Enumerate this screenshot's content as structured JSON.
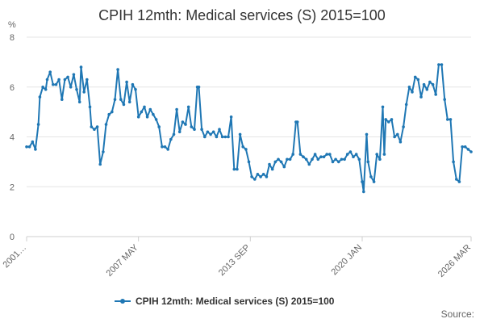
{
  "chart_data": {
    "type": "line",
    "title": "CPIH 12mth: Medical services (S) 2015=100",
    "ylabel": "%",
    "ylim": [
      0,
      8
    ],
    "yticks": [
      0,
      2,
      4,
      6,
      8
    ],
    "x_range": [
      "2001 JAN",
      "2026 MAR"
    ],
    "xticks": [
      "2001…",
      "2007 MAY",
      "2013 SEP",
      "2020 JAN",
      "2026 MAR"
    ],
    "grid": true,
    "legend": "bottom",
    "source_label": "Source:",
    "series": [
      {
        "name": "CPIH 12mth: Medical services (S) 2015=100",
        "color": "#1f77b4",
        "marker": "circle",
        "points": [
          [
            "2001 JAN",
            3.6
          ],
          [
            "2001 MAR",
            3.6
          ],
          [
            "2001 MAY",
            3.8
          ],
          [
            "2001 JUL",
            3.5
          ],
          [
            "2001 SEP",
            4.5
          ],
          [
            "2001 OCT",
            5.6
          ],
          [
            "2001 DEC",
            6.0
          ],
          [
            "2002 FEB",
            5.9
          ],
          [
            "2002 MAR",
            6.3
          ],
          [
            "2002 MAY",
            6.6
          ],
          [
            "2002 JUL",
            6.1
          ],
          [
            "2002 SEP",
            6.1
          ],
          [
            "2002 NOV",
            6.3
          ],
          [
            "2003 JAN",
            5.5
          ],
          [
            "2003 MAR",
            6.3
          ],
          [
            "2003 MAY",
            6.4
          ],
          [
            "2003 JUL",
            6.0
          ],
          [
            "2003 SEP",
            6.5
          ],
          [
            "2003 NOV",
            5.9
          ],
          [
            "2004 JAN",
            5.4
          ],
          [
            "2004 FEB",
            6.8
          ],
          [
            "2004 APR",
            5.8
          ],
          [
            "2004 JUN",
            6.3
          ],
          [
            "2004 AUG",
            5.2
          ],
          [
            "2004 SEP",
            4.4
          ],
          [
            "2004 NOV",
            4.3
          ],
          [
            "2005 JAN",
            4.4
          ],
          [
            "2005 MAR",
            2.9
          ],
          [
            "2005 MAY",
            3.4
          ],
          [
            "2005 JUL",
            4.5
          ],
          [
            "2005 SEP",
            4.9
          ],
          [
            "2005 NOV",
            5.0
          ],
          [
            "2006 JAN",
            5.5
          ],
          [
            "2006 MAR",
            6.7
          ],
          [
            "2006 MAY",
            5.5
          ],
          [
            "2006 JUL",
            5.3
          ],
          [
            "2006 SEP",
            6.2
          ],
          [
            "2006 NOV",
            5.4
          ],
          [
            "2007 JAN",
            6.1
          ],
          [
            "2007 MAR",
            5.9
          ],
          [
            "2007 MAY",
            4.8
          ],
          [
            "2007 JUL",
            5.0
          ],
          [
            "2007 SEP",
            5.2
          ],
          [
            "2007 NOV",
            4.8
          ],
          [
            "2008 JAN",
            5.1
          ],
          [
            "2008 MAR",
            4.9
          ],
          [
            "2008 MAY",
            4.7
          ],
          [
            "2008 JUL",
            4.4
          ],
          [
            "2008 SEP",
            3.6
          ],
          [
            "2008 NOV",
            3.6
          ],
          [
            "2009 JAN",
            3.5
          ],
          [
            "2009 MAR",
            3.9
          ],
          [
            "2009 MAY",
            4.1
          ],
          [
            "2009 JUL",
            5.1
          ],
          [
            "2009 SEP",
            4.2
          ],
          [
            "2009 NOV",
            4.6
          ],
          [
            "2010 JAN",
            4.5
          ],
          [
            "2010 MAR",
            5.2
          ],
          [
            "2010 MAY",
            4.4
          ],
          [
            "2010 JUL",
            4.3
          ],
          [
            "2010 SEP",
            6.0
          ],
          [
            "2010 OCT",
            6.0
          ],
          [
            "2010 DEC",
            4.3
          ],
          [
            "2011 FEB",
            4.0
          ],
          [
            "2011 APR",
            4.2
          ],
          [
            "2011 JUN",
            4.1
          ],
          [
            "2011 AUG",
            4.2
          ],
          [
            "2011 OCT",
            4.0
          ],
          [
            "2011 DEC",
            4.3
          ],
          [
            "2012 FEB",
            4.0
          ],
          [
            "2012 APR",
            4.0
          ],
          [
            "2012 JUN",
            4.0
          ],
          [
            "2012 AUG",
            4.8
          ],
          [
            "2012 OCT",
            2.7
          ],
          [
            "2012 DEC",
            2.7
          ],
          [
            "2013 FEB",
            4.1
          ],
          [
            "2013 APR",
            3.6
          ],
          [
            "2013 JUN",
            3.5
          ],
          [
            "2013 AUG",
            3.0
          ],
          [
            "2013 OCT",
            2.4
          ],
          [
            "2013 DEC",
            2.3
          ],
          [
            "2014 FEB",
            2.5
          ],
          [
            "2014 APR",
            2.4
          ],
          [
            "2014 JUN",
            2.5
          ],
          [
            "2014 AUG",
            2.4
          ],
          [
            "2014 OCT",
            2.9
          ],
          [
            "2014 DEC",
            2.7
          ],
          [
            "2015 FEB",
            3.0
          ],
          [
            "2015 APR",
            3.1
          ],
          [
            "2015 JUN",
            3.0
          ],
          [
            "2015 AUG",
            2.8
          ],
          [
            "2015 OCT",
            3.1
          ],
          [
            "2015 DEC",
            3.1
          ],
          [
            "2016 FEB",
            3.3
          ],
          [
            "2016 APR",
            4.6
          ],
          [
            "2016 MAY",
            4.6
          ],
          [
            "2016 JUL",
            3.3
          ],
          [
            "2016 SEP",
            3.2
          ],
          [
            "2016 NOV",
            3.1
          ],
          [
            "2017 JAN",
            2.9
          ],
          [
            "2017 MAR",
            3.1
          ],
          [
            "2017 MAY",
            3.3
          ],
          [
            "2017 JUL",
            3.1
          ],
          [
            "2017 SEP",
            3.2
          ],
          [
            "2017 NOV",
            3.2
          ],
          [
            "2018 JAN",
            3.3
          ],
          [
            "2018 MAR",
            3.3
          ],
          [
            "2018 MAY",
            3.0
          ],
          [
            "2018 JUL",
            3.1
          ],
          [
            "2018 SEP",
            3.0
          ],
          [
            "2018 NOV",
            3.1
          ],
          [
            "2019 JAN",
            3.1
          ],
          [
            "2019 MAR",
            3.3
          ],
          [
            "2019 MAY",
            3.4
          ],
          [
            "2019 JUL",
            3.2
          ],
          [
            "2019 SEP",
            3.3
          ],
          [
            "2019 NOV",
            3.1
          ],
          [
            "2020 JAN",
            2.2
          ],
          [
            "2020 FEB",
            1.8
          ],
          [
            "2020 APR",
            4.1
          ],
          [
            "2020 MAY",
            3.0
          ],
          [
            "2020 JUL",
            2.4
          ],
          [
            "2020 SEP",
            2.2
          ],
          [
            "2020 NOV",
            3.3
          ],
          [
            "2021 JAN",
            3.1
          ],
          [
            "2021 MAR",
            5.2
          ],
          [
            "2021 APR",
            3.3
          ],
          [
            "2021 MAY",
            4.7
          ],
          [
            "2021 JUL",
            4.6
          ],
          [
            "2021 SEP",
            4.7
          ],
          [
            "2021 NOV",
            4.0
          ],
          [
            "2022 JAN",
            4.1
          ],
          [
            "2022 MAR",
            3.8
          ],
          [
            "2022 MAY",
            4.4
          ],
          [
            "2022 JUL",
            5.3
          ],
          [
            "2022 SEP",
            6.0
          ],
          [
            "2022 NOV",
            5.8
          ],
          [
            "2023 JAN",
            6.4
          ],
          [
            "2023 MAR",
            6.3
          ],
          [
            "2023 MAY",
            5.6
          ],
          [
            "2023 JUL",
            6.1
          ],
          [
            "2023 SEP",
            5.9
          ],
          [
            "2023 NOV",
            6.2
          ],
          [
            "2024 JAN",
            6.1
          ],
          [
            "2024 MAR",
            5.7
          ],
          [
            "2024 MAY",
            6.9
          ],
          [
            "2024 JUL",
            6.9
          ],
          [
            "2024 SEP",
            5.5
          ],
          [
            "2024 NOV",
            4.7
          ],
          [
            "2025 JAN",
            4.7
          ],
          [
            "2025 MAR",
            3.0
          ],
          [
            "2025 MAY",
            2.3
          ],
          [
            "2025 JUL",
            2.2
          ],
          [
            "2025 SEP",
            3.6
          ],
          [
            "2025 NOV",
            3.6
          ],
          [
            "2026 JAN",
            3.5
          ],
          [
            "2026 MAR",
            3.4
          ]
        ]
      }
    ]
  }
}
